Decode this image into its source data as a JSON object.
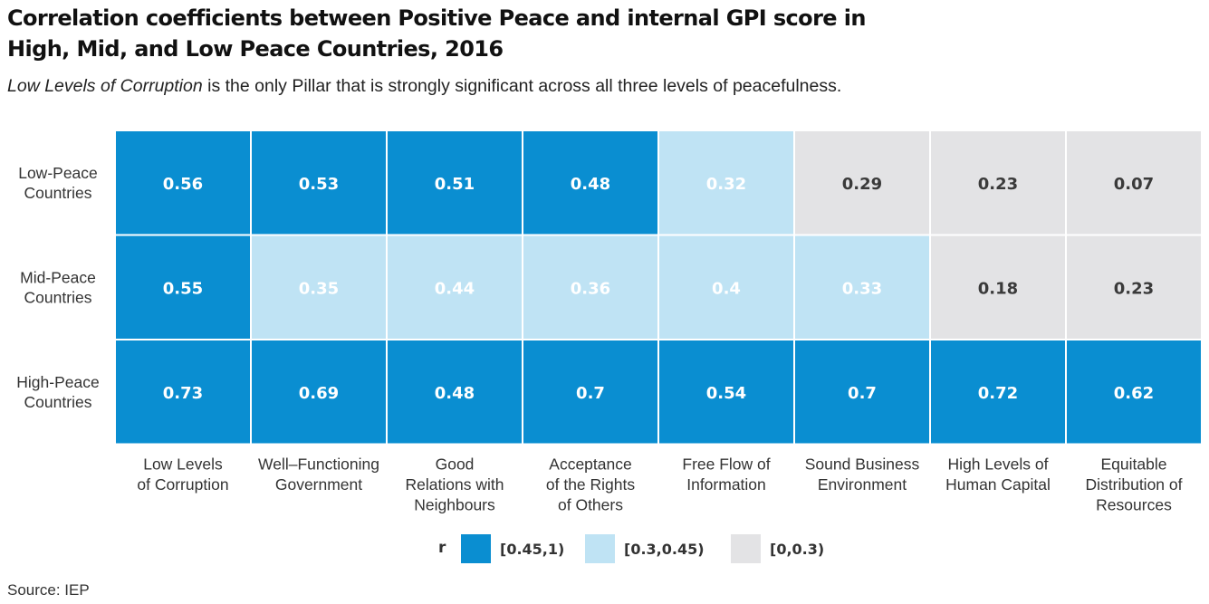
{
  "title_line1": "Correlation coefficients between Positive Peace and internal GPI score in",
  "title_line2": "High, Mid, and Low Peace Countries, 2016",
  "subtitle_italic": "Low Levels of Corruption",
  "subtitle_rest": " is the only Pillar that is strongly significant across all three levels of peacefulness.",
  "source": "Source: IEP",
  "colors": {
    "high": "#0a8ed1",
    "mid": "#bfe3f4",
    "low": "#e3e3e5",
    "text_dark_bg": "#ffffff",
    "text_low_bg": "#3a3a3a"
  },
  "legend": {
    "label": "r",
    "items": [
      {
        "label": "[0.45,1)",
        "color": "#0a8ed1"
      },
      {
        "label": "[0.3,0.45)",
        "color": "#bfe3f4"
      },
      {
        "label": "[0,0.3)",
        "color": "#e3e3e5"
      }
    ]
  },
  "chart_data": {
    "type": "heatmap",
    "rows": [
      [
        "Low-Peace",
        "Countries"
      ],
      [
        "Mid-Peace",
        "Countries"
      ],
      [
        "High-Peace",
        "Countries"
      ]
    ],
    "columns": [
      [
        "Low Levels",
        "of Corruption"
      ],
      [
        "Well–Functioning",
        "Government"
      ],
      [
        "Good",
        "Relations with",
        "Neighbours"
      ],
      [
        "Acceptance",
        "of the Rights",
        "of Others"
      ],
      [
        "Free Flow of",
        "Information"
      ],
      [
        "Sound Business",
        "Environment"
      ],
      [
        "High Levels of",
        "Human Capital"
      ],
      [
        "Equitable",
        "Distribution of",
        "Resources"
      ]
    ],
    "values": [
      [
        "0.56",
        "0.53",
        "0.51",
        "0.48",
        "0.32",
        "0.29",
        "0.23",
        "0.07"
      ],
      [
        "0.55",
        "0.35",
        "0.44",
        "0.36",
        "0.4",
        "0.33",
        "0.18",
        "0.23"
      ],
      [
        "0.73",
        "0.69",
        "0.48",
        "0.7",
        "0.54",
        "0.7",
        "0.72",
        "0.62"
      ]
    ],
    "bins": [
      "[0.45,1)",
      "[0.3,0.45)",
      "[0,0.3)"
    ]
  }
}
